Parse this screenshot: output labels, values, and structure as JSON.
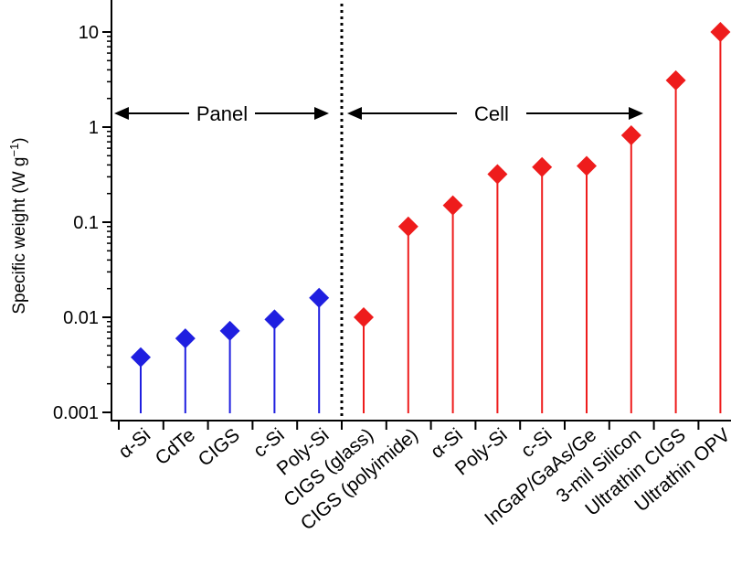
{
  "chart_data": {
    "type": "scatter",
    "style": "lollipop",
    "title": "",
    "xlabel": "",
    "ylabel": "Specific weight (W g",
    "ylabel_superscript": "−1",
    "ylabel_close": ")",
    "yscale": "log",
    "ylim": [
      0.001,
      16
    ],
    "yticks": [
      {
        "value": 0.001,
        "label": "0.001"
      },
      {
        "value": 0.01,
        "label": "0.01"
      },
      {
        "value": 0.1,
        "label": "0.1"
      },
      {
        "value": 1,
        "label": "1"
      },
      {
        "value": 10,
        "label": "10"
      }
    ],
    "categories": [
      "α-Si",
      "CdTe",
      "CIGS",
      "c-Si",
      "Poly-Si",
      "CIGS (glass)",
      "CIGS (polyimide)",
      "α-Si",
      "Poly-Si",
      "c-Si",
      "InGaP/GaAs/Ge",
      "3-mil Silicon",
      "Ultrathin CIGS",
      "Ultrathin OPV"
    ],
    "series": [
      {
        "name": "Panel",
        "color": "#1f1fe0",
        "start_index": 0,
        "values": [
          0.0038,
          0.006,
          0.0072,
          0.0095,
          0.016
        ]
      },
      {
        "name": "Cell",
        "color": "#ee1c1c",
        "start_index": 5,
        "values": [
          0.01,
          0.09,
          0.15,
          0.32,
          0.38,
          0.39,
          0.82,
          3.1,
          10
        ]
      }
    ],
    "annotations": {
      "panel_label": "Panel",
      "cell_label": "Cell",
      "divider_after_index": 4
    }
  }
}
